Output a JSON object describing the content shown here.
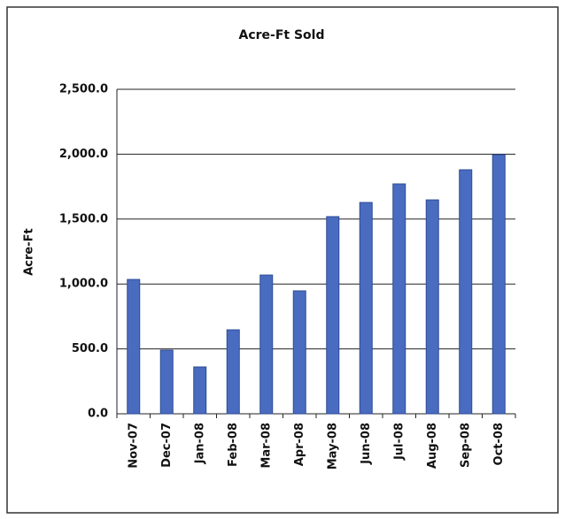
{
  "chart_data": {
    "type": "bar",
    "title": "Acre-Ft Sold",
    "y_label": "Acre-Ft",
    "categories": [
      "Nov-07",
      "Dec-07",
      "Jan-08",
      "Feb-08",
      "Mar-08",
      "Apr-08",
      "May-08",
      "Jun-08",
      "Jul-08",
      "Aug-08",
      "Sep-08",
      "Oct-08"
    ],
    "values": [
      1035,
      490,
      361,
      647,
      1069,
      947,
      1519,
      1628,
      1771,
      1648,
      1880,
      1996
    ],
    "color": "#4a6cc0",
    "ylim": [
      0,
      2500
    ],
    "yticks": [
      {
        "value": 0,
        "label": "0.0"
      },
      {
        "value": 500,
        "label": "500.0"
      },
      {
        "value": 1000,
        "label": "1,000.0"
      },
      {
        "value": 1500,
        "label": "1,500.0"
      },
      {
        "value": 2000,
        "label": "2,000.0"
      },
      {
        "value": 2500,
        "label": "2,500.0"
      }
    ],
    "grid": true
  }
}
